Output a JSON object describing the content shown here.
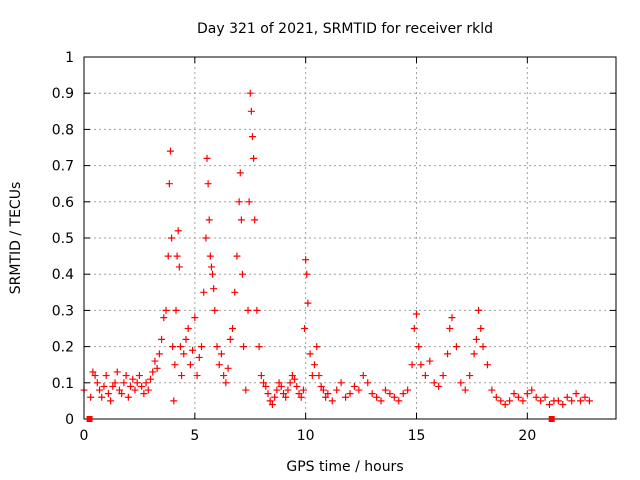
{
  "chart_data": {
    "type": "scatter",
    "title": "Day 321 of 2021, SRMTID for receiver rkld",
    "xlabel": "GPS time / hours",
    "ylabel": "SRMTID / TECUs",
    "xlim": [
      0,
      24
    ],
    "ylim": [
      0,
      1
    ],
    "xticks": [
      0,
      5,
      10,
      15,
      20
    ],
    "xtick_labels": [
      "0",
      "5",
      "10",
      "15",
      "20"
    ],
    "yticks": [
      0,
      0.1,
      0.2,
      0.3,
      0.4,
      0.5,
      0.6,
      0.7,
      0.8,
      0.9,
      1
    ],
    "ytick_labels": [
      "0",
      "0.1",
      "0.2",
      "0.3",
      "0.4",
      "0.5",
      "0.6",
      "0.7",
      "0.8",
      "0.9",
      "1"
    ],
    "grid": true,
    "marker": "+",
    "color": "#ff0000",
    "axis_markers": [
      0.25,
      21.1
    ],
    "series": [
      {
        "name": "rkld",
        "x": [
          0.0,
          0.3,
          0.4,
          0.5,
          0.6,
          0.7,
          0.8,
          0.9,
          1.0,
          1.1,
          1.2,
          1.3,
          1.4,
          1.5,
          1.6,
          1.7,
          1.8,
          1.9,
          2.0,
          2.1,
          2.2,
          2.3,
          2.4,
          2.5,
          2.6,
          2.7,
          2.8,
          2.9,
          3.0,
          3.1,
          3.2,
          3.3,
          3.4,
          3.5,
          3.6,
          3.7,
          3.8,
          3.85,
          3.9,
          3.95,
          4.0,
          4.05,
          4.1,
          4.15,
          4.2,
          4.25,
          4.3,
          4.35,
          4.4,
          4.5,
          4.6,
          4.7,
          4.8,
          4.9,
          5.0,
          5.1,
          5.2,
          5.3,
          5.4,
          5.5,
          5.55,
          5.6,
          5.65,
          5.7,
          5.75,
          5.8,
          5.85,
          5.9,
          6.0,
          6.1,
          6.2,
          6.3,
          6.4,
          6.5,
          6.6,
          6.7,
          6.8,
          6.9,
          7.0,
          7.05,
          7.1,
          7.15,
          7.2,
          7.3,
          7.4,
          7.45,
          7.5,
          7.55,
          7.6,
          7.65,
          7.7,
          7.8,
          7.9,
          8.0,
          8.1,
          8.2,
          8.3,
          8.4,
          8.5,
          8.6,
          8.7,
          8.8,
          8.9,
          9.0,
          9.1,
          9.2,
          9.3,
          9.4,
          9.5,
          9.6,
          9.7,
          9.8,
          9.9,
          9.95,
          10.0,
          10.05,
          10.1,
          10.2,
          10.3,
          10.4,
          10.5,
          10.6,
          10.7,
          10.8,
          10.9,
          11.0,
          11.2,
          11.4,
          11.6,
          11.8,
          12.0,
          12.2,
          12.4,
          12.6,
          12.8,
          13.0,
          13.2,
          13.4,
          13.6,
          13.8,
          14.0,
          14.2,
          14.4,
          14.6,
          14.8,
          14.9,
          15.0,
          15.1,
          15.2,
          15.4,
          15.6,
          15.8,
          16.0,
          16.2,
          16.4,
          16.5,
          16.6,
          16.8,
          17.0,
          17.2,
          17.4,
          17.6,
          17.7,
          17.8,
          17.9,
          18.0,
          18.2,
          18.4,
          18.6,
          18.8,
          19.0,
          19.2,
          19.4,
          19.6,
          19.8,
          20.0,
          20.2,
          20.4,
          20.6,
          20.8,
          21.0,
          21.2,
          21.4,
          21.6,
          21.8,
          22.0,
          22.2,
          22.4,
          22.6,
          22.8
        ],
        "y": [
          0.08,
          0.06,
          0.13,
          0.12,
          0.1,
          0.08,
          0.06,
          0.09,
          0.12,
          0.07,
          0.05,
          0.09,
          0.1,
          0.13,
          0.08,
          0.07,
          0.1,
          0.12,
          0.06,
          0.09,
          0.11,
          0.08,
          0.1,
          0.12,
          0.09,
          0.07,
          0.1,
          0.08,
          0.11,
          0.13,
          0.16,
          0.14,
          0.18,
          0.22,
          0.28,
          0.3,
          0.45,
          0.65,
          0.74,
          0.5,
          0.2,
          0.05,
          0.15,
          0.3,
          0.45,
          0.52,
          0.42,
          0.2,
          0.12,
          0.18,
          0.22,
          0.25,
          0.15,
          0.19,
          0.28,
          0.12,
          0.17,
          0.2,
          0.35,
          0.5,
          0.72,
          0.65,
          0.55,
          0.45,
          0.42,
          0.4,
          0.36,
          0.3,
          0.2,
          0.15,
          0.18,
          0.12,
          0.1,
          0.14,
          0.22,
          0.25,
          0.35,
          0.45,
          0.6,
          0.68,
          0.55,
          0.4,
          0.2,
          0.08,
          0.3,
          0.6,
          0.9,
          0.85,
          0.78,
          0.72,
          0.55,
          0.3,
          0.2,
          0.12,
          0.1,
          0.09,
          0.07,
          0.05,
          0.04,
          0.06,
          0.08,
          0.1,
          0.09,
          0.07,
          0.06,
          0.08,
          0.1,
          0.12,
          0.11,
          0.09,
          0.07,
          0.06,
          0.08,
          0.25,
          0.44,
          0.4,
          0.32,
          0.18,
          0.12,
          0.15,
          0.2,
          0.12,
          0.09,
          0.08,
          0.06,
          0.07,
          0.05,
          0.08,
          0.1,
          0.06,
          0.07,
          0.09,
          0.08,
          0.12,
          0.1,
          0.07,
          0.06,
          0.05,
          0.08,
          0.07,
          0.06,
          0.05,
          0.07,
          0.08,
          0.15,
          0.25,
          0.29,
          0.2,
          0.15,
          0.12,
          0.16,
          0.1,
          0.09,
          0.12,
          0.18,
          0.25,
          0.28,
          0.2,
          0.1,
          0.08,
          0.12,
          0.18,
          0.22,
          0.3,
          0.25,
          0.2,
          0.15,
          0.08,
          0.06,
          0.05,
          0.04,
          0.05,
          0.07,
          0.06,
          0.05,
          0.07,
          0.08,
          0.06,
          0.05,
          0.06,
          0.04,
          0.05,
          0.05,
          0.04,
          0.06,
          0.05,
          0.07,
          0.05,
          0.06,
          0.05
        ]
      }
    ]
  }
}
